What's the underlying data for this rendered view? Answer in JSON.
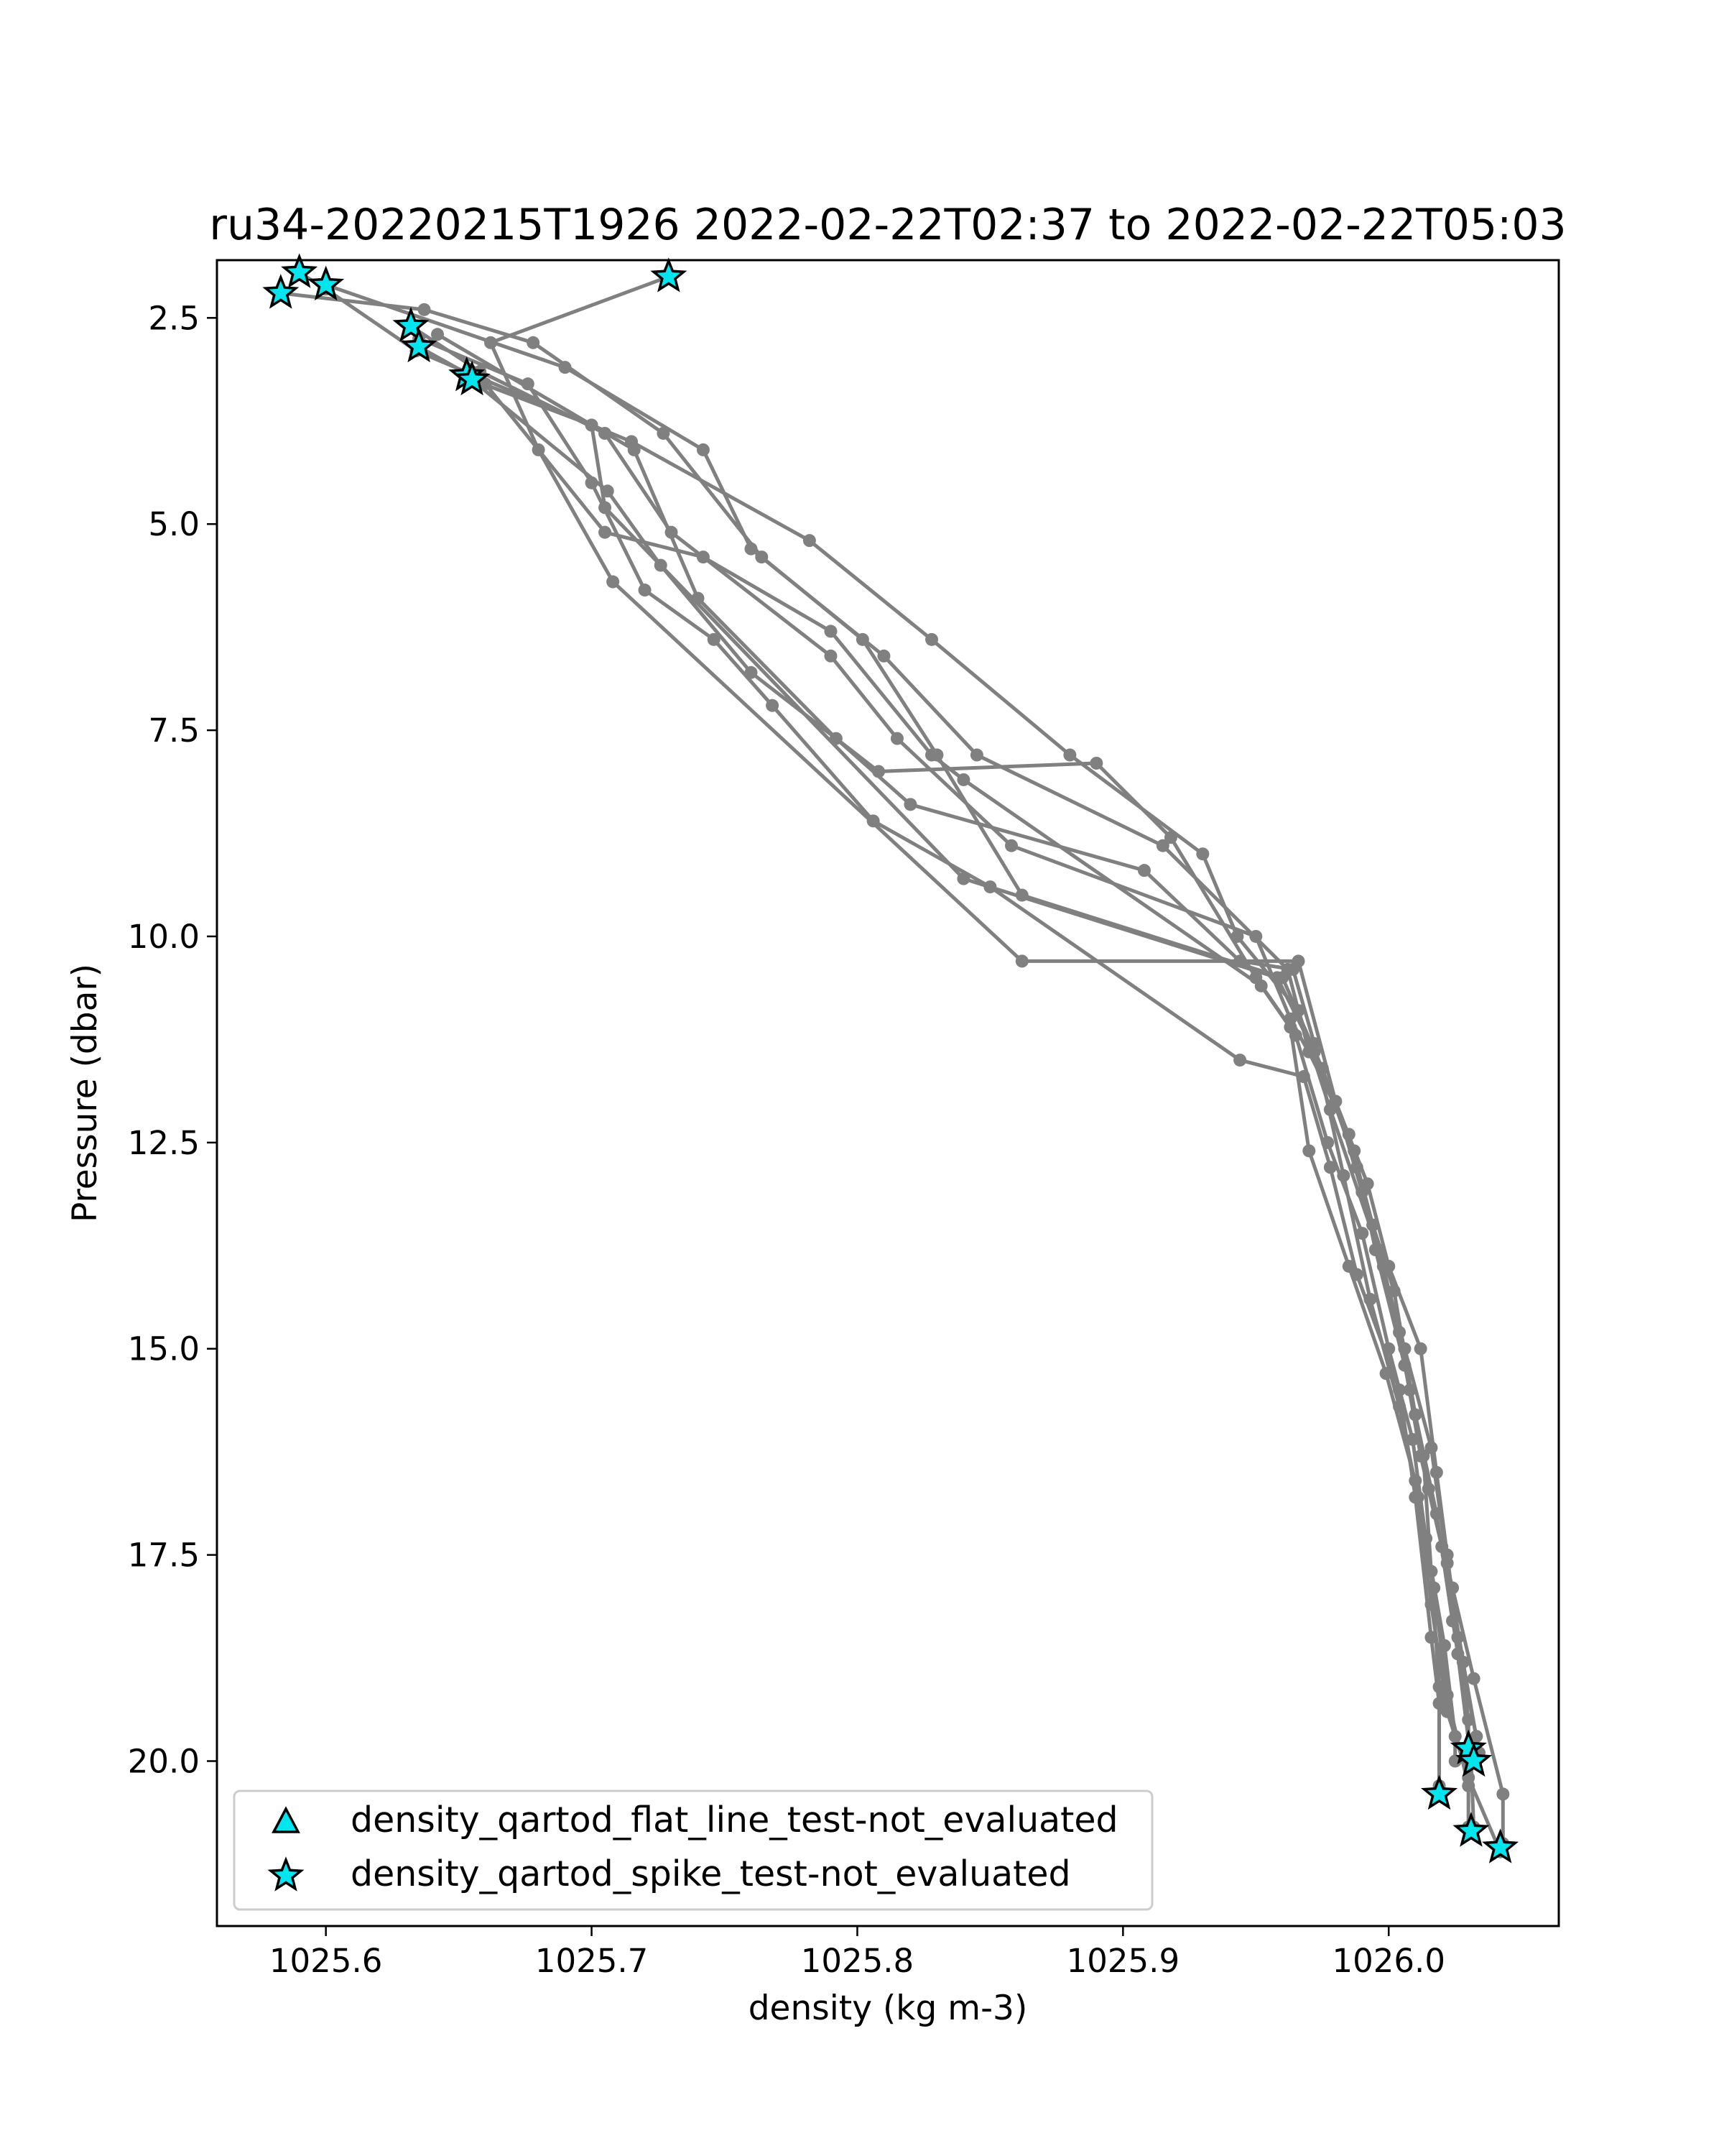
{
  "chart_data": {
    "type": "line",
    "title": "ru34-20220215T1926 2022-02-22T02:37 to 2022-02-22T05:03",
    "xlabel": "density (kg m-3)",
    "ylabel": "Pressure (dbar)",
    "xlim": [
      1025.559,
      1026.064
    ],
    "ylim": [
      22.0,
      1.8
    ],
    "y_inverted": true,
    "xticks": [
      {
        "value": 1025.6,
        "label": "1025.6"
      },
      {
        "value": 1025.7,
        "label": "1025.7"
      },
      {
        "value": 1025.8,
        "label": "1025.8"
      },
      {
        "value": 1025.9,
        "label": "1025.9"
      },
      {
        "value": 1026.0,
        "label": "1026.0"
      }
    ],
    "yticks": [
      {
        "value": 2.5,
        "label": "2.5"
      },
      {
        "value": 5.0,
        "label": "5.0"
      },
      {
        "value": 7.5,
        "label": "7.5"
      },
      {
        "value": 10.0,
        "label": "10.0"
      },
      {
        "value": 12.5,
        "label": "12.5"
      },
      {
        "value": 15.0,
        "label": "15.0"
      },
      {
        "value": 17.5,
        "label": "17.5"
      },
      {
        "value": 20.0,
        "label": "20.0"
      }
    ],
    "grid": false,
    "line_color": "#808080",
    "flag_color": "#00e5ee",
    "legend": {
      "position": "lower-left",
      "entries": [
        {
          "label": "density_qartod_flat_line_test-not_evaluated",
          "marker": "triangle"
        },
        {
          "label": "density_qartod_spike_test-not_evaluated",
          "marker": "star"
        }
      ]
    },
    "profiles": [
      {
        "points": [
          [
            1025.729,
            2.0
          ],
          [
            1025.662,
            2.8
          ],
          [
            1025.68,
            4.1
          ],
          [
            1025.708,
            5.7
          ],
          [
            1025.862,
            10.3
          ],
          [
            1025.966,
            10.3
          ],
          [
            1025.98,
            12.0
          ],
          [
            1025.992,
            13.0
          ],
          [
            1026.0,
            14.0
          ],
          [
            1026.012,
            15.0
          ],
          [
            1026.018,
            16.5
          ],
          [
            1026.022,
            17.5
          ],
          [
            1026.026,
            18.5
          ],
          [
            1026.03,
            19.5
          ],
          [
            1026.03,
            19.85
          ]
        ]
      },
      {
        "points": [
          [
            1025.59,
            1.95
          ],
          [
            1025.6,
            2.15
          ],
          [
            1025.634,
            2.9
          ],
          [
            1025.7,
            3.8
          ],
          [
            1025.705,
            4.8
          ],
          [
            1025.84,
            9.3
          ],
          [
            1025.958,
            10.5
          ],
          [
            1025.972,
            11.4
          ],
          [
            1025.987,
            12.6
          ],
          [
            1025.995,
            13.8
          ],
          [
            1026.006,
            15.2
          ],
          [
            1026.013,
            16.3
          ],
          [
            1026.016,
            17.7
          ],
          [
            1026.019,
            19.1
          ],
          [
            1026.019,
            20.4
          ]
        ]
      },
      {
        "points": [
          [
            1025.583,
            2.2
          ],
          [
            1025.637,
            2.4
          ],
          [
            1025.678,
            2.8
          ],
          [
            1025.727,
            3.9
          ],
          [
            1025.764,
            5.4
          ],
          [
            1025.802,
            6.4
          ],
          [
            1025.83,
            7.8
          ],
          [
            1025.862,
            9.5
          ],
          [
            1025.96,
            10.5
          ],
          [
            1025.975,
            11.6
          ],
          [
            1025.988,
            12.8
          ],
          [
            1025.998,
            14.0
          ],
          [
            1026.008,
            15.5
          ],
          [
            1026.015,
            16.7
          ],
          [
            1026.024,
            17.9
          ],
          [
            1026.032,
            19.0
          ],
          [
            1026.043,
            20.4
          ],
          [
            1026.043,
            21.0
          ]
        ]
      },
      {
        "points": [
          [
            1025.6,
            2.1
          ],
          [
            1025.69,
            3.1
          ],
          [
            1025.742,
            4.1
          ],
          [
            1025.76,
            5.3
          ],
          [
            1025.81,
            6.6
          ],
          [
            1025.845,
            7.8
          ],
          [
            1025.915,
            8.9
          ],
          [
            1025.962,
            10.4
          ],
          [
            1025.97,
            11.4
          ],
          [
            1025.985,
            12.4
          ],
          [
            1025.994,
            13.5
          ],
          [
            1026.004,
            14.8
          ],
          [
            1026.012,
            16.3
          ],
          [
            1026.02,
            17.4
          ],
          [
            1026.026,
            18.7
          ],
          [
            1026.031,
            20.0
          ],
          [
            1026.032,
            20.8
          ]
        ]
      },
      {
        "points": [
          [
            1025.632,
            2.6
          ],
          [
            1025.658,
            3.15
          ],
          [
            1025.705,
            3.9
          ],
          [
            1025.73,
            5.1
          ],
          [
            1025.79,
            6.6
          ],
          [
            1025.815,
            7.6
          ],
          [
            1025.858,
            8.9
          ],
          [
            1025.95,
            10.0
          ],
          [
            1025.963,
            11.0
          ],
          [
            1025.98,
            12.0
          ],
          [
            1025.99,
            13.1
          ],
          [
            1026.002,
            14.3
          ],
          [
            1026.01,
            15.8
          ],
          [
            1026.018,
            17.0
          ],
          [
            1026.024,
            18.3
          ],
          [
            1026.033,
            19.7
          ],
          [
            1026.033,
            19.9
          ]
        ]
      },
      {
        "points": [
          [
            1025.635,
            2.85
          ],
          [
            1025.66,
            3.3
          ],
          [
            1025.705,
            5.1
          ],
          [
            1025.742,
            5.4
          ],
          [
            1025.79,
            6.3
          ],
          [
            1025.828,
            7.8
          ],
          [
            1025.84,
            8.1
          ],
          [
            1025.952,
            10.6
          ],
          [
            1025.965,
            11.2
          ],
          [
            1025.977,
            12.5
          ],
          [
            1025.99,
            13.6
          ],
          [
            1026.0,
            15.0
          ],
          [
            1026.009,
            16.1
          ],
          [
            1026.014,
            17.3
          ],
          [
            1026.021,
            18.6
          ],
          [
            1026.025,
            19.7
          ],
          [
            1026.025,
            20.0
          ]
        ]
      },
      {
        "points": [
          [
            1025.655,
            3.25
          ],
          [
            1025.7,
            3.8
          ],
          [
            1025.715,
            4.0
          ],
          [
            1025.782,
            5.2
          ],
          [
            1025.828,
            6.4
          ],
          [
            1025.88,
            7.8
          ],
          [
            1025.93,
            9.0
          ],
          [
            1025.943,
            10.0
          ],
          [
            1025.966,
            10.9
          ],
          [
            1025.978,
            12.1
          ],
          [
            1025.996,
            13.8
          ],
          [
            1026.006,
            15.0
          ],
          [
            1026.016,
            16.2
          ],
          [
            1026.022,
            17.6
          ],
          [
            1026.028,
            18.8
          ],
          [
            1026.034,
            19.9
          ]
        ]
      },
      {
        "points": [
          [
            1025.653,
            3.2
          ],
          [
            1025.706,
            4.6
          ],
          [
            1025.726,
            5.5
          ],
          [
            1025.76,
            6.8
          ],
          [
            1025.808,
            8.0
          ],
          [
            1025.89,
            7.9
          ],
          [
            1025.918,
            8.8
          ],
          [
            1025.95,
            10.5
          ],
          [
            1025.963,
            11.1
          ],
          [
            1025.97,
            12.6
          ],
          [
            1025.985,
            14.0
          ],
          [
            1025.999,
            15.3
          ],
          [
            1026.01,
            16.6
          ],
          [
            1026.017,
            17.9
          ],
          [
            1026.022,
            19.2
          ],
          [
            1026.03,
            20.3
          ],
          [
            1026.03,
            20.8
          ]
        ]
      },
      {
        "points": [
          [
            1025.642,
            2.7
          ],
          [
            1025.716,
            4.1
          ],
          [
            1025.74,
            5.9
          ],
          [
            1025.792,
            7.6
          ],
          [
            1025.82,
            8.4
          ],
          [
            1025.908,
            9.2
          ],
          [
            1025.944,
            10.3
          ],
          [
            1025.964,
            10.4
          ],
          [
            1025.972,
            11.3
          ],
          [
            1025.983,
            12.9
          ],
          [
            1025.993,
            14.4
          ],
          [
            1026.004,
            15.7
          ],
          [
            1026.011,
            16.8
          ],
          [
            1026.016,
            18.1
          ],
          [
            1026.022,
            19.4
          ],
          [
            1026.03,
            20.2
          ],
          [
            1026.042,
            21.1
          ]
        ]
      },
      {
        "points": [
          [
            1025.635,
            2.75
          ],
          [
            1025.676,
            3.3
          ],
          [
            1025.7,
            4.5
          ],
          [
            1025.72,
            5.8
          ],
          [
            1025.746,
            6.4
          ],
          [
            1025.768,
            7.2
          ],
          [
            1025.806,
            8.6
          ],
          [
            1025.85,
            9.4
          ],
          [
            1025.944,
            11.5
          ],
          [
            1025.968,
            11.7
          ],
          [
            1025.978,
            12.8
          ],
          [
            1025.988,
            14.1
          ],
          [
            1026.004,
            15.5
          ],
          [
            1026.01,
            16.8
          ],
          [
            1026.016,
            18.5
          ],
          [
            1026.019,
            19.3
          ],
          [
            1026.019,
            20.3
          ]
        ]
      }
    ],
    "flag_points": [
      [
        1025.59,
        1.95
      ],
      [
        1025.6,
        2.1
      ],
      [
        1025.583,
        2.2
      ],
      [
        1025.729,
        2.0
      ],
      [
        1025.632,
        2.6
      ],
      [
        1025.635,
        2.85
      ],
      [
        1025.653,
        3.2
      ],
      [
        1025.655,
        3.25
      ],
      [
        1026.03,
        19.85
      ],
      [
        1026.032,
        20.0
      ],
      [
        1026.019,
        20.4
      ],
      [
        1026.031,
        20.85
      ],
      [
        1026.042,
        21.05
      ]
    ]
  }
}
